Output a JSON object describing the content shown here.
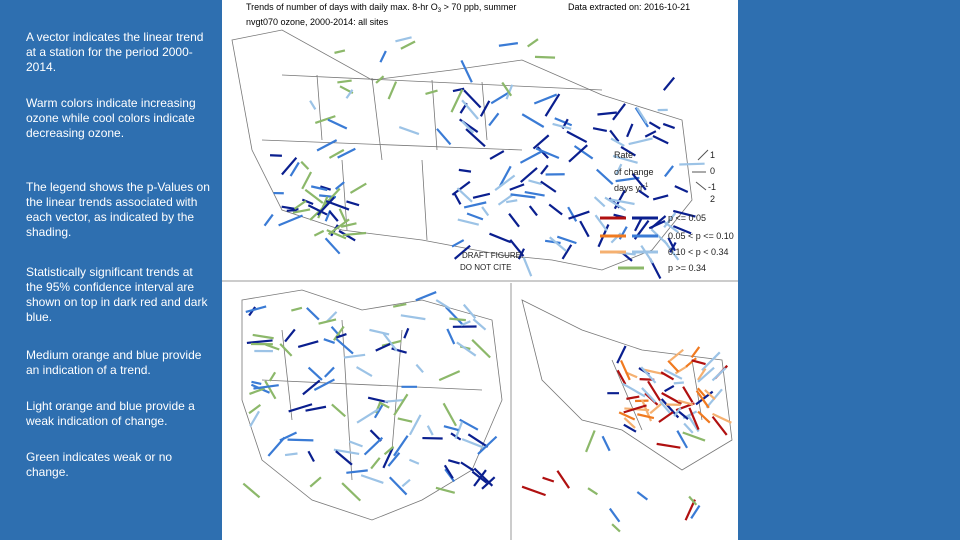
{
  "sidebar": {
    "paragraphs": [
      "A vector indicates the linear trend at a station for the period 2000-2014.",
      "Warm colors indicate increasing ozone while cool colors indicate decreasing ozone.",
      "The legend shows the p-Values on the linear trends associated with each vector, as indicated by the shading.",
      "Statistically significant trends at the 95% confidence interval are shown on top in dark red and dark blue.",
      "Medium orange and blue provide an indication of a trend.",
      "Light orange and blue provide a weak indication of change.",
      "Green indicates weak or no change."
    ]
  },
  "figure": {
    "title": "Trends of number of days with daily max. 8-hr O",
    "title_subscript": "3",
    "title_rest": " > 70 ppb, summer",
    "extracted": "Data extracted on:  2016-10-21",
    "subtitle": "nvgt070 ozone, 2000-2014:  all sites",
    "rate": {
      "lines": [
        "Rate",
        "of change",
        "days yr"
      ],
      "superscript": "-1",
      "scale": [
        "1",
        "0",
        "-1",
        "2"
      ]
    },
    "legend": [
      "p <= 0.05",
      "0.05 < p <= 0.10",
      "0.10 < p < 0.34",
      "p >= 0.34"
    ],
    "draft": [
      "DRAFT FIGURE:",
      "DO NOT CITE"
    ]
  }
}
